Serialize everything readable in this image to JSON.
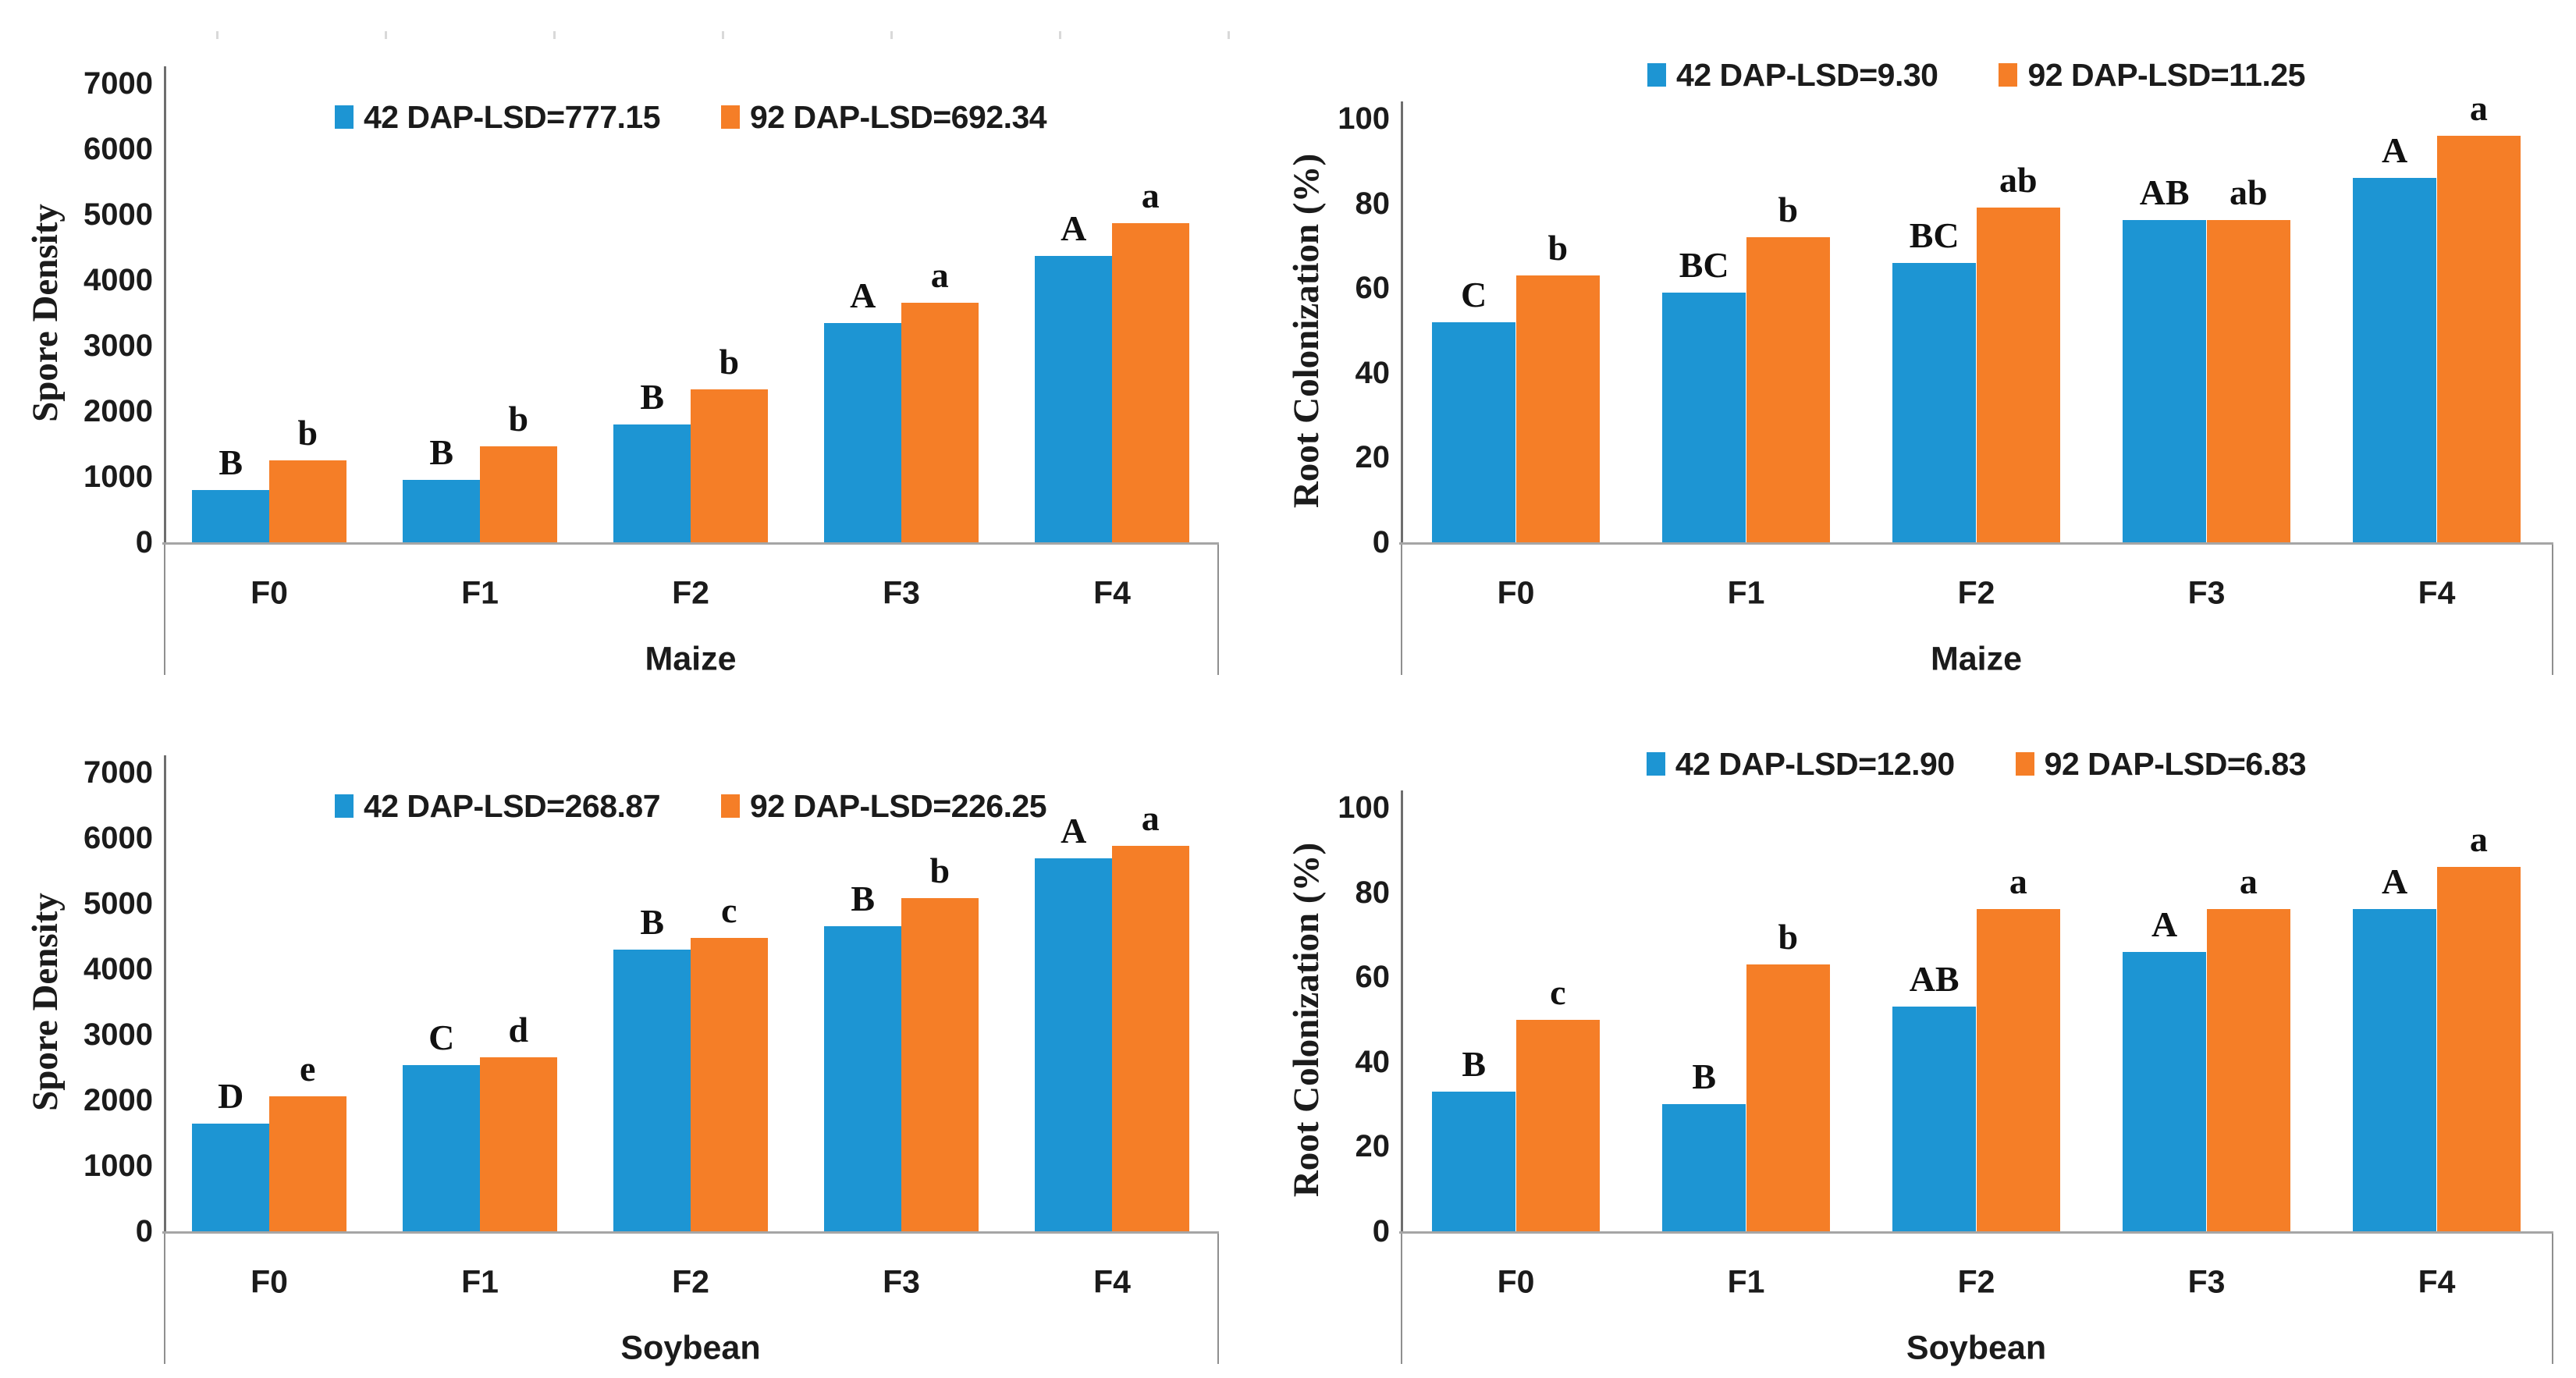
{
  "colors": {
    "dap42": "#1D95D3",
    "dap92": "#F57E27",
    "axis_line": "#6e6e6e",
    "baseline": "#a6a6a6",
    "frame": "#8f8f8f",
    "text": "#1b1b1b"
  },
  "chart_data": [
    {
      "type": "bar",
      "panel": "maize-spore-density",
      "xlabel": "Maize",
      "ylabel": "Spore Density",
      "ylim": [
        0,
        7000
      ],
      "yticks": [
        0,
        1000,
        2000,
        3000,
        4000,
        5000,
        6000,
        7000
      ],
      "grid": false,
      "legend_position": "top-center",
      "categories": [
        "F0",
        "F1",
        "F2",
        "F3",
        "F4"
      ],
      "series": [
        {
          "name": "42 DAP-LSD=777.15",
          "color": "#1D95D3",
          "values": [
            800,
            950,
            1800,
            3350,
            4370
          ],
          "letters": [
            "B",
            "B",
            "B",
            "A",
            "A"
          ]
        },
        {
          "name": "92 DAP-LSD=692.34",
          "color": "#F57E27",
          "values": [
            1250,
            1470,
            2330,
            3660,
            4870
          ],
          "letters": [
            "b",
            "b",
            "b",
            "a",
            "a"
          ]
        }
      ]
    },
    {
      "type": "bar",
      "panel": "maize-root-colonization",
      "xlabel": "Maize",
      "ylabel": "Root Colonization (%)",
      "ylim": [
        0,
        100
      ],
      "yticks": [
        0,
        20,
        40,
        60,
        80,
        100
      ],
      "grid": false,
      "legend_position": "top-center",
      "categories": [
        "F0",
        "F1",
        "F2",
        "F3",
        "F4"
      ],
      "series": [
        {
          "name": "42 DAP-LSD=9.30",
          "color": "#1D95D3",
          "values": [
            52,
            59,
            66,
            76,
            86
          ],
          "letters": [
            "C",
            "BC",
            "BC",
            "AB",
            "A"
          ]
        },
        {
          "name": "92 DAP-LSD=11.25",
          "color": "#F57E27",
          "values": [
            63,
            72,
            79,
            76,
            96
          ],
          "letters": [
            "b",
            "b",
            "ab",
            "ab",
            "a"
          ]
        }
      ]
    },
    {
      "type": "bar",
      "panel": "soybean-spore-density",
      "xlabel": "Soybean",
      "ylabel": "Spore Density",
      "ylim": [
        0,
        7000
      ],
      "yticks": [
        0,
        1000,
        2000,
        3000,
        4000,
        5000,
        6000,
        7000
      ],
      "grid": false,
      "legend_position": "top-center",
      "categories": [
        "F0",
        "F1",
        "F2",
        "F3",
        "F4"
      ],
      "series": [
        {
          "name": "42 DAP-LSD=268.87",
          "color": "#1D95D3",
          "values": [
            1640,
            2530,
            4300,
            4650,
            5690
          ],
          "letters": [
            "D",
            "C",
            "B",
            "B",
            "A"
          ]
        },
        {
          "name": "92 DAP-LSD=226.25",
          "color": "#F57E27",
          "values": [
            2060,
            2660,
            4480,
            5080,
            5880
          ],
          "letters": [
            "e",
            "d",
            "c",
            "b",
            "a"
          ]
        }
      ]
    },
    {
      "type": "bar",
      "panel": "soybean-root-colonization",
      "xlabel": "Soybean",
      "ylabel": "Root Colonization (%)",
      "ylim": [
        0,
        100
      ],
      "yticks": [
        0,
        20,
        40,
        60,
        80,
        100
      ],
      "grid": false,
      "legend_position": "top-center",
      "categories": [
        "F0",
        "F1",
        "F2",
        "F3",
        "F4"
      ],
      "series": [
        {
          "name": "42 DAP-LSD=12.90",
          "color": "#1D95D3",
          "values": [
            33,
            30,
            53,
            66,
            76
          ],
          "letters": [
            "B",
            "B",
            "AB",
            "A",
            "A"
          ]
        },
        {
          "name": "92 DAP-LSD=6.83",
          "color": "#F57E27",
          "values": [
            50,
            63,
            76,
            76,
            86
          ],
          "letters": [
            "c",
            "b",
            "a",
            "a",
            "a"
          ]
        }
      ]
    }
  ]
}
